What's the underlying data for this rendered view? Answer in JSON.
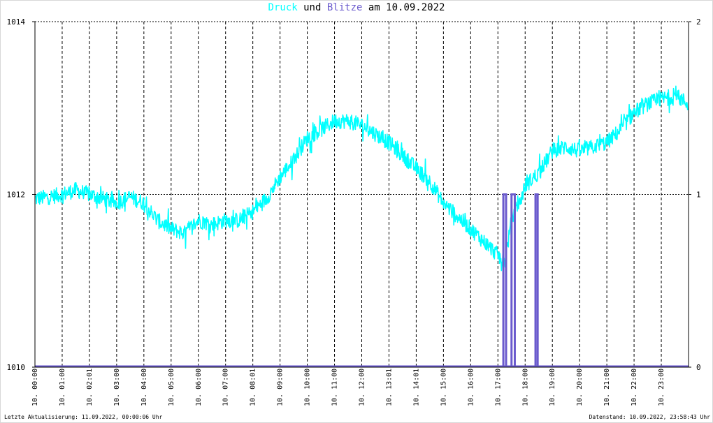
{
  "title": {
    "word1": "Druck",
    "word2": " und ",
    "word3": "Blitze",
    "word4": " am 10.09.2022",
    "color_druck": "#00ffff",
    "color_blitze": "#6a5acd",
    "color_text": "#000000"
  },
  "footer": {
    "left": "Letzte Aktualisierung: 11.09.2022, 00:00:06 Uhr",
    "right": "Datenstand: 10.09.2022, 23:58:43 Uhr"
  },
  "chart_data": {
    "type": "line",
    "title": "Druck und Blitze am 10.09.2022",
    "x_ticks": [
      "10. 00:00",
      "10. 01:00",
      "10. 02:01",
      "10. 03:00",
      "10. 04:00",
      "10. 05:00",
      "10. 06:00",
      "10. 07:00",
      "10. 08:01",
      "10. 09:00",
      "10. 10:00",
      "10. 11:00",
      "10. 12:00",
      "10. 13:01",
      "10. 14:01",
      "10. 15:00",
      "10. 16:00",
      "10. 17:00",
      "10. 18:00",
      "10. 19:00",
      "10. 20:00",
      "10. 21:00",
      "10. 22:00",
      "10. 23:00"
    ],
    "y_left": {
      "ticks": [
        "1010",
        "1012",
        "1014"
      ],
      "ylim": [
        1010,
        1014
      ]
    },
    "y_right": {
      "ticks": [
        "0",
        "1",
        "2"
      ],
      "ylim": [
        0,
        2
      ]
    },
    "grid": true,
    "series": [
      {
        "name": "Druck",
        "axis": "left",
        "color": "#00ffff",
        "x_hours": [
          0,
          0.5,
          1,
          1.5,
          2,
          2.5,
          3,
          3.5,
          4,
          4.5,
          5,
          5.5,
          6,
          6.5,
          7,
          7.5,
          8,
          8.5,
          9,
          9.5,
          10,
          10.5,
          11,
          11.5,
          12,
          12.5,
          13,
          13.5,
          14,
          14.5,
          15,
          15.5,
          16,
          16.5,
          17,
          17.25,
          17.5,
          17.75,
          18,
          18.5,
          19,
          19.5,
          20,
          20.5,
          21,
          21.5,
          22,
          22.5,
          23,
          23.5,
          23.98
        ],
        "values": [
          1011.95,
          1011.97,
          1012.0,
          1012.05,
          1012.0,
          1011.95,
          1011.9,
          1011.97,
          1011.9,
          1011.7,
          1011.6,
          1011.55,
          1011.7,
          1011.65,
          1011.7,
          1011.7,
          1011.8,
          1011.95,
          1012.2,
          1012.4,
          1012.65,
          1012.75,
          1012.85,
          1012.85,
          1012.8,
          1012.7,
          1012.6,
          1012.45,
          1012.3,
          1012.15,
          1011.9,
          1011.75,
          1011.6,
          1011.45,
          1011.3,
          1011.2,
          1011.7,
          1011.85,
          1012.1,
          1012.25,
          1012.5,
          1012.55,
          1012.5,
          1012.55,
          1012.6,
          1012.75,
          1012.95,
          1013.05,
          1013.1,
          1013.15,
          1013.05
        ]
      },
      {
        "name": "Blitze",
        "axis": "right",
        "color": "#6a5acd",
        "spikes": [
          {
            "start_h": 17.2,
            "end_h": 17.3,
            "value": 1
          },
          {
            "start_h": 17.5,
            "end_h": 17.62,
            "value": 1
          },
          {
            "start_h": 18.38,
            "end_h": 18.46,
            "value": 1
          }
        ]
      }
    ]
  }
}
